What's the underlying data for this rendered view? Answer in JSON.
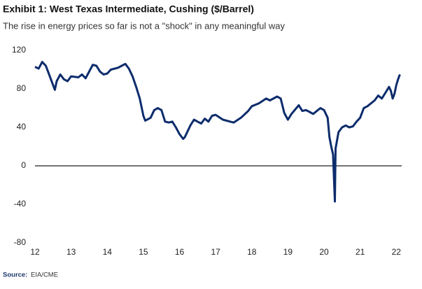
{
  "chart_data": {
    "type": "line",
    "title": "Exhibit 1: West Texas Intermediate, Cushing ($/Barrel)",
    "subtitle": "The rise in energy prices so far is not a \"shock\" in any meaningful way",
    "source_label": "Source:",
    "source": "EIA/CME",
    "x": [
      12.0,
      12.1,
      12.2,
      12.3,
      12.4,
      12.5,
      12.55,
      12.6,
      12.7,
      12.8,
      12.9,
      13.0,
      13.2,
      13.3,
      13.4,
      13.5,
      13.6,
      13.7,
      13.8,
      13.9,
      14.0,
      14.1,
      14.3,
      14.4,
      14.5,
      14.6,
      14.7,
      14.8,
      14.9,
      15.0,
      15.05,
      15.2,
      15.3,
      15.4,
      15.5,
      15.6,
      15.7,
      15.8,
      15.9,
      16.0,
      16.1,
      16.15,
      16.3,
      16.4,
      16.5,
      16.6,
      16.7,
      16.8,
      16.9,
      17.0,
      17.2,
      17.4,
      17.5,
      17.7,
      17.9,
      18.0,
      18.2,
      18.4,
      18.5,
      18.7,
      18.8,
      18.9,
      19.0,
      19.1,
      19.3,
      19.4,
      19.5,
      19.6,
      19.7,
      19.8,
      19.9,
      20.0,
      20.1,
      20.15,
      20.2,
      20.25,
      20.3,
      20.32,
      20.4,
      20.5,
      20.6,
      20.7,
      20.8,
      20.9,
      21.0,
      21.1,
      21.2,
      21.4,
      21.5,
      21.6,
      21.7,
      21.8,
      21.85,
      21.9,
      21.95,
      22.0,
      22.05,
      22.1
    ],
    "series": [
      {
        "color": "#0d2c6c",
        "values": [
          103,
          101,
          108,
          104,
          94,
          84,
          79,
          88,
          95,
          90,
          88,
          93,
          92,
          95,
          91,
          98,
          105,
          104,
          98,
          95,
          96,
          100,
          102,
          104,
          106,
          101,
          93,
          82,
          70,
          52,
          47,
          50,
          58,
          60,
          58,
          46,
          45,
          46,
          40,
          33,
          28,
          30,
          42,
          48,
          46,
          44,
          49,
          46,
          52,
          53,
          48,
          46,
          45,
          50,
          57,
          62,
          65,
          70,
          68,
          72,
          70,
          55,
          48,
          54,
          63,
          57,
          58,
          56,
          54,
          57,
          60,
          58,
          50,
          30,
          20,
          12,
          -37,
          18,
          35,
          40,
          42,
          40,
          41,
          46,
          50,
          60,
          62,
          68,
          73,
          70,
          76,
          82,
          78,
          70,
          75,
          84,
          90,
          95
        ]
      }
    ],
    "xlim": [
      12,
      22.15
    ],
    "xticks": [
      12,
      13,
      14,
      15,
      16,
      17,
      18,
      19,
      20,
      21,
      22
    ],
    "ylim": [
      -80,
      120
    ],
    "yticks": [
      -80,
      -40,
      0,
      40,
      80,
      120
    ],
    "zero_line": true
  }
}
